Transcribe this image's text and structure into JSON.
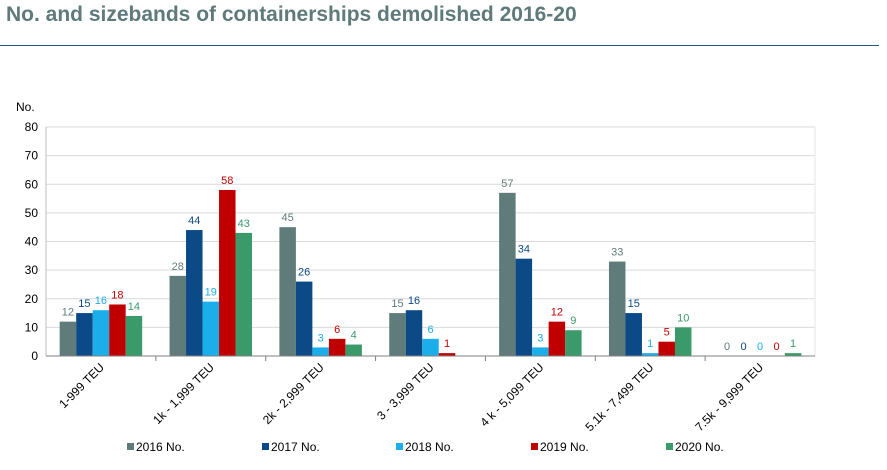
{
  "header": {
    "title": "No. and sizebands of containerships demolished 2016-20"
  },
  "chart_data": {
    "type": "bar",
    "title": "No. and sizebands of containerships demolished 2016-20",
    "ylabel": "No.",
    "xlabel": "",
    "ylim": [
      0,
      80
    ],
    "yticks": [
      0,
      10,
      20,
      30,
      40,
      50,
      60,
      70,
      80
    ],
    "grid": true,
    "legend_position": "bottom",
    "categories": [
      "1-999 TEU",
      "1k - 1,999 TEU",
      "2k - 2,999 TEU",
      "3 - 3,999 TEU",
      "4 k - 5,099 TEU",
      "5.1k - 7,499 TEU",
      "7.5k - 9,999 TEU"
    ],
    "series": [
      {
        "name": "2016 No.",
        "color": "#5f7c7b",
        "values": [
          12,
          28,
          45,
          15,
          57,
          33,
          0
        ]
      },
      {
        "name": "2017 No.",
        "color": "#0b4a86",
        "values": [
          15,
          44,
          26,
          16,
          34,
          15,
          0
        ]
      },
      {
        "name": "2018 No.",
        "color": "#1aaeea",
        "values": [
          16,
          19,
          3,
          6,
          3,
          1,
          0
        ]
      },
      {
        "name": "2019 No.",
        "color": "#c00000",
        "values": [
          18,
          58,
          6,
          1,
          12,
          5,
          0
        ]
      },
      {
        "name": "2020 No.",
        "color": "#3a9a6a",
        "values": [
          14,
          43,
          4,
          null,
          9,
          10,
          1
        ]
      }
    ]
  }
}
